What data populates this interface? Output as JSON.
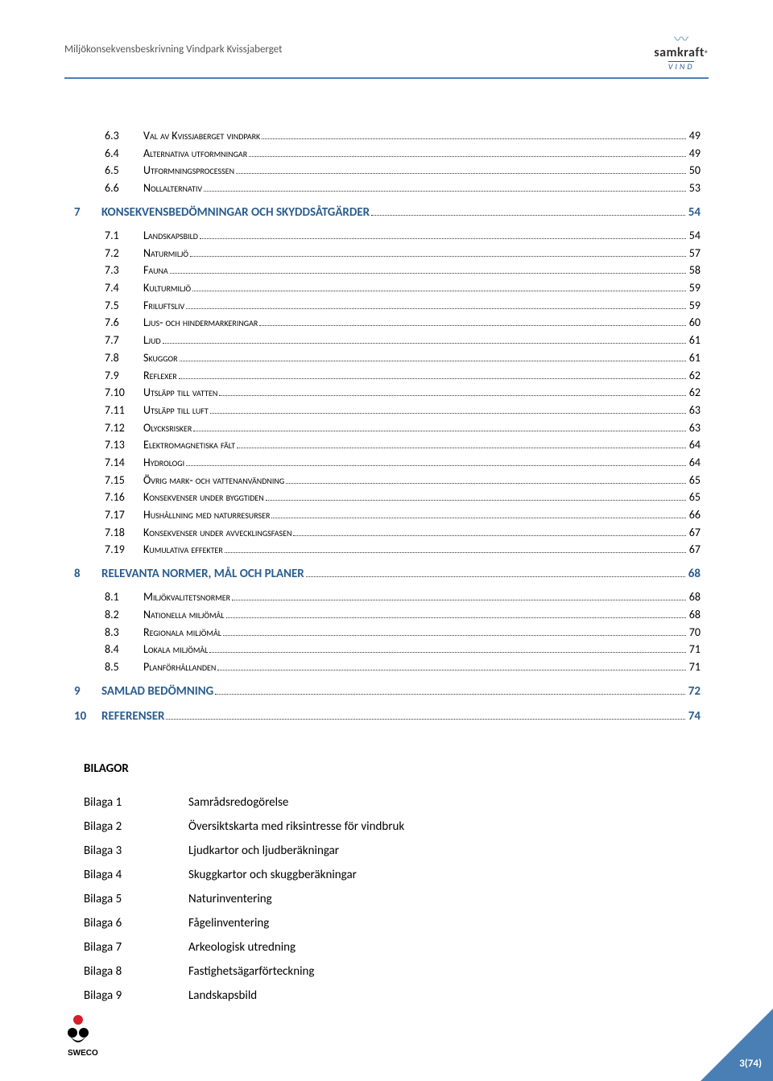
{
  "header": {
    "title": "Miljökonsekvensbeskrivning Vindpark Kvissjaberget",
    "logo_name": "samkraft",
    "logo_sub": "VIND"
  },
  "colors": {
    "rule": "#4a7fb5",
    "heading": "#2a5d8f",
    "text": "#000000",
    "muted": "#555555"
  },
  "toc": [
    {
      "level": 2,
      "num": "6.3",
      "label": "Val av Kvissjaberget vindpark",
      "page": "49"
    },
    {
      "level": 2,
      "num": "6.4",
      "label": "Alternativa utformningar",
      "page": "49"
    },
    {
      "level": 2,
      "num": "6.5",
      "label": "Utformningsprocessen",
      "page": "50"
    },
    {
      "level": 2,
      "num": "6.6",
      "label": "Nollalternativ",
      "page": "53"
    },
    {
      "level": 1,
      "num": "7",
      "label": "KONSEKVENSBEDÖMNINGAR OCH SKYDDSÅTGÄRDER",
      "page": "54"
    },
    {
      "level": 2,
      "num": "7.1",
      "label": "Landskapsbild",
      "page": "54"
    },
    {
      "level": 2,
      "num": "7.2",
      "label": "Naturmiljö",
      "page": "57"
    },
    {
      "level": 2,
      "num": "7.3",
      "label": "Fauna",
      "page": "58"
    },
    {
      "level": 2,
      "num": "7.4",
      "label": "Kulturmiljö",
      "page": "59"
    },
    {
      "level": 2,
      "num": "7.5",
      "label": "Friluftsliv",
      "page": "59"
    },
    {
      "level": 2,
      "num": "7.6",
      "label": "Ljus- och hindermarkeringar",
      "page": "60"
    },
    {
      "level": 2,
      "num": "7.7",
      "label": "Ljud",
      "page": "61"
    },
    {
      "level": 2,
      "num": "7.8",
      "label": "Skuggor",
      "page": "61"
    },
    {
      "level": 2,
      "num": "7.9",
      "label": "Reflexer",
      "page": "62"
    },
    {
      "level": 2,
      "num": "7.10",
      "label": "Utsläpp till vatten",
      "page": "62"
    },
    {
      "level": 2,
      "num": "7.11",
      "label": "Utsläpp till luft",
      "page": "63"
    },
    {
      "level": 2,
      "num": "7.12",
      "label": "Olycksrisker",
      "page": "63"
    },
    {
      "level": 2,
      "num": "7.13",
      "label": "Elektromagnetiska fält",
      "page": "64"
    },
    {
      "level": 2,
      "num": "7.14",
      "label": "Hydrologi",
      "page": "64"
    },
    {
      "level": 2,
      "num": "7.15",
      "label": "Övrig mark- och vattenanvändning",
      "page": "65"
    },
    {
      "level": 2,
      "num": "7.16",
      "label": "Konsekvenser under byggtiden",
      "page": "65"
    },
    {
      "level": 2,
      "num": "7.17",
      "label": "Hushållning med naturresurser",
      "page": "66"
    },
    {
      "level": 2,
      "num": "7.18",
      "label": "Konsekvenser under avvecklingsfasen",
      "page": "67"
    },
    {
      "level": 2,
      "num": "7.19",
      "label": "Kumulativa effekter",
      "page": "67"
    },
    {
      "level": 1,
      "num": "8",
      "label": "RELEVANTA NORMER, MÅL OCH PLANER",
      "page": "68"
    },
    {
      "level": 2,
      "num": "8.1",
      "label": "Miljökvalitetsnormer",
      "page": "68"
    },
    {
      "level": 2,
      "num": "8.2",
      "label": "Nationella miljömål",
      "page": "68"
    },
    {
      "level": 2,
      "num": "8.3",
      "label": "Regionala miljömål",
      "page": "70"
    },
    {
      "level": 2,
      "num": "8.4",
      "label": "Lokala miljömål",
      "page": "71"
    },
    {
      "level": 2,
      "num": "8.5",
      "label": "Planförhållanden",
      "page": "71"
    },
    {
      "level": 1,
      "num": "9",
      "label": "SAMLAD BEDÖMNING",
      "page": "72"
    },
    {
      "level": 1,
      "num": "10",
      "label": "REFERENSER",
      "page": "74"
    }
  ],
  "bilagor": {
    "heading": "BILAGOR",
    "items": [
      {
        "label": "Bilaga 1",
        "desc": "Samrådsredogörelse"
      },
      {
        "label": "Bilaga 2",
        "desc": "Översiktskarta med riksintresse för vindbruk"
      },
      {
        "label": "Bilaga 3",
        "desc": "Ljudkartor och ljudberäkningar"
      },
      {
        "label": "Bilaga 4",
        "desc": "Skuggkartor och skuggberäkningar"
      },
      {
        "label": "Bilaga 5",
        "desc": "Naturinventering"
      },
      {
        "label": "Bilaga 6",
        "desc": "Fågelinventering"
      },
      {
        "label": "Bilaga 7",
        "desc": "Arkeologisk utredning"
      },
      {
        "label": "Bilaga 8",
        "desc": "Fastighetsägarförteckning"
      },
      {
        "label": "Bilaga 9",
        "desc": "Landskapsbild"
      }
    ]
  },
  "footer": {
    "page_number": "3(74)"
  }
}
